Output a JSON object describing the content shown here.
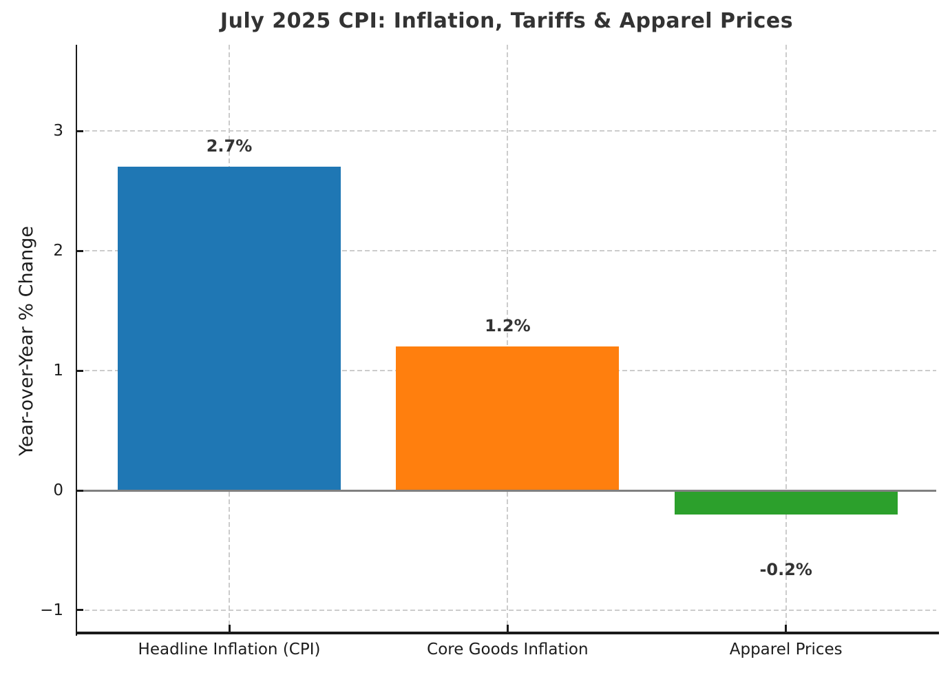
{
  "chart_data": {
    "type": "bar",
    "title": "July 2025 CPI: Inflation, Tariffs & Apparel Prices",
    "ylabel": "Year-over-Year % Change",
    "xlabel": "",
    "categories": [
      "Headline Inflation (CPI)",
      "Core Goods Inflation",
      "Apparel Prices"
    ],
    "values": [
      2.7,
      1.2,
      -0.2
    ],
    "bar_labels": [
      "2.7%",
      "1.2%",
      "-0.2%"
    ],
    "bar_colors": [
      "#1f77b4",
      "#ff7f0e",
      "#2ca02c"
    ],
    "yticks": [
      {
        "value": -1,
        "label": "−1"
      },
      {
        "value": 0,
        "label": "0"
      },
      {
        "value": 1,
        "label": "1"
      },
      {
        "value": 2,
        "label": "2"
      },
      {
        "value": 3,
        "label": "3"
      }
    ],
    "ylim": [
      -1.19,
      3.72
    ],
    "grid": true,
    "grid_style": "dashed",
    "zero_line": true,
    "legend": null,
    "colors": {
      "grid": "#cccccc",
      "zero_line": "#808080",
      "spine": "#1a1a1a",
      "title_text": "#333333",
      "tick_text": "#1c1c1c",
      "value_text": "#333333",
      "background": "#ffffff"
    }
  }
}
